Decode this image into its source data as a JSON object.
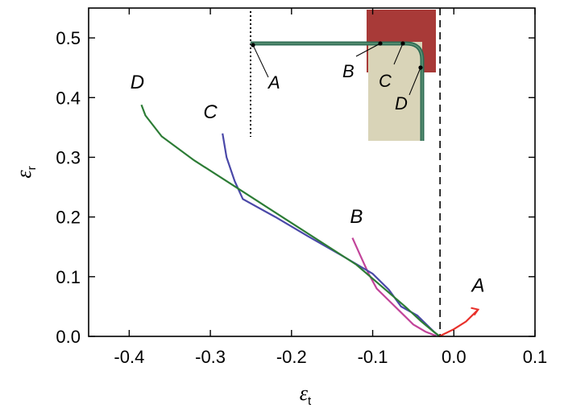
{
  "chart_data": {
    "type": "line",
    "xlabel": "ε",
    "xlabel_sub": "t",
    "ylabel": "ε",
    "ylabel_sub": "r",
    "xlim": [
      -0.45,
      0.1
    ],
    "ylim": [
      0.0,
      0.55
    ],
    "xticks": [
      "-0.4",
      "-0.3",
      "-0.2",
      "-0.1",
      "0.0",
      "0.1"
    ],
    "xtick_values": [
      -0.4,
      -0.3,
      -0.2,
      -0.1,
      0.0,
      0.1
    ],
    "yticks": [
      "0.0",
      "0.1",
      "0.2",
      "0.3",
      "0.4",
      "0.5"
    ],
    "ytick_values": [
      0.0,
      0.1,
      0.2,
      0.3,
      0.4,
      0.5
    ],
    "grid": false,
    "reference_line_x": -0.017,
    "series": [
      {
        "name": "A",
        "color": "#e8302a",
        "points": [
          [
            -0.018,
            0.0
          ],
          [
            0.0,
            0.012
          ],
          [
            0.015,
            0.025
          ],
          [
            0.03,
            0.045
          ]
        ],
        "label_pos": [
          0.03,
          0.075
        ]
      },
      {
        "name": "B",
        "color": "#c2449a",
        "points": [
          [
            -0.125,
            0.165
          ],
          [
            -0.115,
            0.135
          ],
          [
            -0.105,
            0.105
          ],
          [
            -0.095,
            0.08
          ],
          [
            -0.08,
            0.06
          ],
          [
            -0.065,
            0.04
          ],
          [
            -0.05,
            0.02
          ],
          [
            -0.035,
            0.008
          ],
          [
            -0.022,
            0.001
          ]
        ],
        "label_pos": [
          -0.12,
          0.19
        ]
      },
      {
        "name": "C",
        "color": "#4a48a8",
        "points": [
          [
            -0.285,
            0.34
          ],
          [
            -0.28,
            0.3
          ],
          [
            -0.27,
            0.26
          ],
          [
            -0.26,
            0.23
          ],
          [
            -0.22,
            0.2
          ],
          [
            -0.18,
            0.168
          ],
          [
            -0.14,
            0.137
          ],
          [
            -0.1,
            0.105
          ],
          [
            -0.08,
            0.078
          ],
          [
            -0.065,
            0.05
          ],
          [
            -0.045,
            0.035
          ],
          [
            -0.03,
            0.015
          ],
          [
            -0.02,
            0.002
          ]
        ],
        "label_pos": [
          -0.3,
          0.365
        ]
      },
      {
        "name": "D",
        "color": "#2c7c35",
        "points": [
          [
            -0.385,
            0.388
          ],
          [
            -0.38,
            0.37
          ],
          [
            -0.36,
            0.335
          ],
          [
            -0.32,
            0.295
          ],
          [
            -0.28,
            0.26
          ],
          [
            -0.24,
            0.225
          ],
          [
            -0.2,
            0.19
          ],
          [
            -0.16,
            0.155
          ],
          [
            -0.12,
            0.12
          ],
          [
            -0.09,
            0.085
          ],
          [
            -0.06,
            0.05
          ],
          [
            -0.04,
            0.025
          ],
          [
            -0.025,
            0.008
          ],
          [
            -0.018,
            0.001
          ]
        ],
        "label_pos": [
          -0.39,
          0.415
        ]
      }
    ],
    "inset": {
      "labels": [
        "A",
        "B",
        "C",
        "D"
      ]
    }
  }
}
